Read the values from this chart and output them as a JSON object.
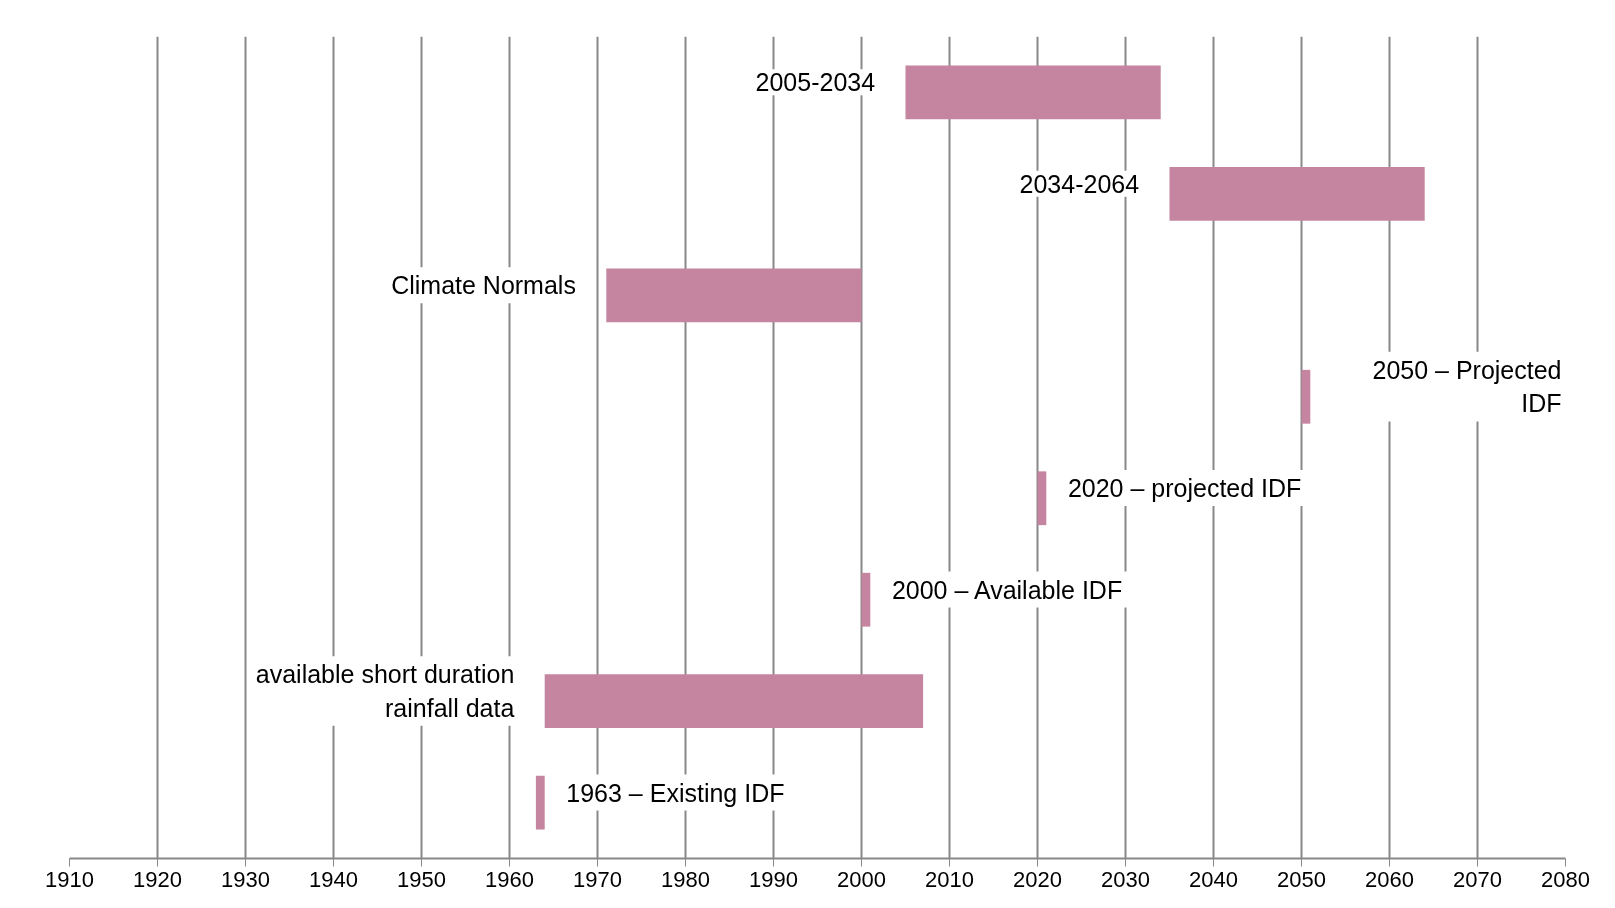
{
  "chart_data": {
    "type": "bar",
    "orientation": "horizontal",
    "categories": [
      "2005-2034",
      "2034-2064",
      "Climate Normals",
      "2050 – Projected\nIDF",
      "2020 – projected IDF",
      "2000 – Available IDF",
      "available short duration\nrainfall data",
      "1963 – Existing IDF"
    ],
    "base": [
      2005,
      2035,
      1971,
      2050,
      2020,
      2000,
      1964,
      1963
    ],
    "values": [
      29,
      29,
      29,
      1,
      1,
      1,
      43,
      1
    ],
    "color": "#c5849f",
    "xlim": [
      1910,
      2080
    ],
    "xticks": [
      1910,
      1920,
      1930,
      1940,
      1950,
      1960,
      1970,
      1980,
      1990,
      2000,
      2010,
      2020,
      2030,
      2040,
      2050,
      2060,
      2070,
      2080
    ],
    "grid": "x",
    "tick_labels": "x"
  }
}
